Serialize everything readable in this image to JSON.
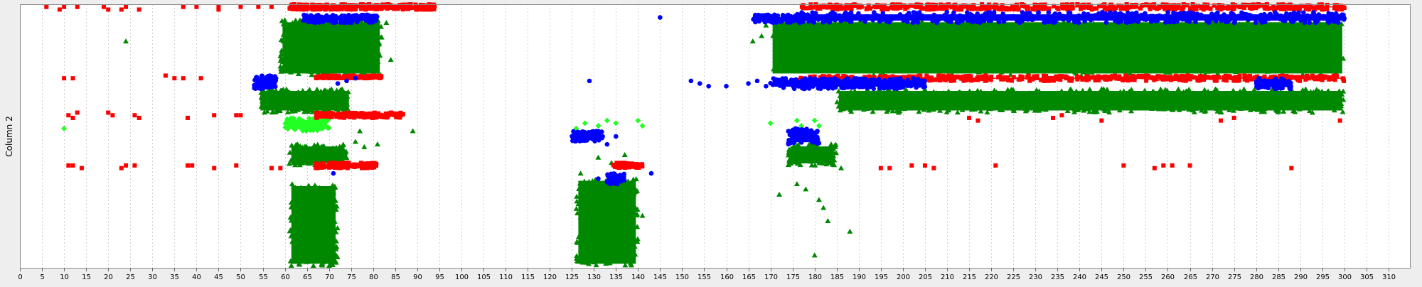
{
  "chart_data": {
    "type": "scatter",
    "title": "",
    "xlabel": "",
    "ylabel": "Column 2",
    "xlim": [
      0,
      315
    ],
    "x_ticks": [
      0,
      5,
      10,
      15,
      20,
      25,
      30,
      35,
      40,
      45,
      50,
      55,
      60,
      65,
      70,
      75,
      80,
      85,
      90,
      95,
      100,
      105,
      110,
      115,
      120,
      125,
      130,
      135,
      140,
      145,
      150,
      155,
      160,
      165,
      170,
      175,
      180,
      185,
      190,
      195,
      200,
      205,
      210,
      215,
      220,
      225,
      230,
      235,
      240,
      245,
      250,
      255,
      260,
      265,
      270,
      275,
      280,
      285,
      290,
      295,
      300,
      305,
      310
    ],
    "y_axis_tick_labels_shown": false,
    "grid": {
      "vertical": true,
      "horizontal": false,
      "style": "dotted"
    },
    "legend": "none",
    "colors": {
      "red": "#ff0000",
      "blue": "#0000ff",
      "green": "#008800",
      "lime": "#22ff22",
      "plot_background": "#ffffff",
      "page_background": "#eeeeee"
    },
    "y_scale_note": "y values are relative levels in [0,1] (0 = bottom of plot, 1 = top); the vertical axis shows no numeric tick labels",
    "series": [
      {
        "color": "red",
        "marker": "square",
        "points": [
          [
            6,
            0.99
          ],
          [
            9,
            0.98
          ],
          [
            10,
            0.99
          ],
          [
            13,
            0.99
          ],
          [
            19,
            0.99
          ],
          [
            20,
            0.98
          ],
          [
            23,
            0.98
          ],
          [
            24,
            0.99
          ],
          [
            27,
            0.98
          ],
          [
            37,
            0.99
          ],
          [
            40,
            0.99
          ],
          [
            45,
            0.98
          ],
          [
            45,
            0.99
          ],
          [
            50,
            0.99
          ],
          [
            54,
            0.99
          ],
          [
            57,
            0.99
          ],
          [
            10,
            0.72
          ],
          [
            12,
            0.72
          ],
          [
            33,
            0.73
          ],
          [
            35,
            0.72
          ],
          [
            37,
            0.72
          ],
          [
            41,
            0.72
          ],
          [
            11,
            0.58
          ],
          [
            12,
            0.57
          ],
          [
            13,
            0.59
          ],
          [
            20,
            0.59
          ],
          [
            21,
            0.58
          ],
          [
            26,
            0.58
          ],
          [
            27,
            0.57
          ],
          [
            38,
            0.57
          ],
          [
            44,
            0.58
          ],
          [
            49,
            0.58
          ],
          [
            50,
            0.58
          ],
          [
            11,
            0.39
          ],
          [
            12,
            0.39
          ],
          [
            14,
            0.38
          ],
          [
            23,
            0.38
          ],
          [
            24,
            0.39
          ],
          [
            26,
            0.39
          ],
          [
            38,
            0.39
          ],
          [
            39,
            0.39
          ],
          [
            44,
            0.38
          ],
          [
            49,
            0.39
          ],
          [
            57,
            0.38
          ],
          [
            59,
            0.38
          ],
          [
            195,
            0.38
          ],
          [
            197,
            0.38
          ],
          [
            202,
            0.39
          ],
          [
            205,
            0.39
          ],
          [
            207,
            0.38
          ],
          [
            221,
            0.39
          ],
          [
            250,
            0.39
          ],
          [
            257,
            0.38
          ],
          [
            259,
            0.39
          ],
          [
            261,
            0.39
          ],
          [
            265,
            0.39
          ],
          [
            288,
            0.38
          ],
          [
            215,
            0.57
          ],
          [
            217,
            0.56
          ],
          [
            234,
            0.57
          ],
          [
            236,
            0.58
          ],
          [
            245,
            0.56
          ],
          [
            272,
            0.56
          ],
          [
            275,
            0.57
          ],
          [
            299,
            0.56
          ]
        ],
        "bands": [
          {
            "x": [
              61,
              94
            ],
            "y": [
              0.98,
              1.0
            ]
          },
          {
            "x": [
              67,
              82
            ],
            "y": [
              0.72,
              0.73
            ]
          },
          {
            "x": [
              67,
              87
            ],
            "y": [
              0.57,
              0.59
            ]
          },
          {
            "x": [
              67,
              81
            ],
            "y": [
              0.38,
              0.4
            ]
          },
          {
            "x": [
              134,
              141
            ],
            "y": [
              0.38,
              0.4
            ]
          },
          {
            "x": [
              177,
              300
            ],
            "y": [
              0.98,
              1.0
            ]
          },
          {
            "x": [
              176,
              300
            ],
            "y": [
              0.71,
              0.73
            ]
          }
        ]
      },
      {
        "color": "blue",
        "marker": "circle",
        "points": [
          [
            145,
            0.95
          ],
          [
            129,
            0.71
          ],
          [
            152,
            0.71
          ],
          [
            154,
            0.7
          ],
          [
            156,
            0.69
          ],
          [
            160,
            0.69
          ],
          [
            165,
            0.7
          ],
          [
            167,
            0.71
          ],
          [
            169,
            0.69
          ],
          [
            171,
            0.7
          ],
          [
            72,
            0.7
          ],
          [
            74,
            0.71
          ],
          [
            76,
            0.72
          ],
          [
            130,
            0.49
          ],
          [
            132,
            0.5
          ],
          [
            135,
            0.5
          ],
          [
            133,
            0.47
          ],
          [
            143,
            0.36
          ],
          [
            131,
            0.34
          ],
          [
            133,
            0.33
          ],
          [
            71,
            0.36
          ],
          [
            54,
            0.71
          ],
          [
            55,
            0.69
          ],
          [
            57,
            0.7
          ],
          [
            58,
            0.72
          ]
        ],
        "bands": [
          {
            "x": [
              64,
              81
            ],
            "y": [
              0.93,
              0.96
            ]
          },
          {
            "x": [
              53,
              58
            ],
            "y": [
              0.68,
              0.73
            ]
          },
          {
            "x": [
              166,
              178
            ],
            "y": [
              0.93,
              0.96
            ]
          },
          {
            "x": [
              176,
              300
            ],
            "y": [
              0.93,
              0.97
            ]
          },
          {
            "x": [
              170,
              205
            ],
            "y": [
              0.68,
              0.72
            ]
          },
          {
            "x": [
              280,
              288
            ],
            "y": [
              0.68,
              0.72
            ]
          },
          {
            "x": [
              125,
              132
            ],
            "y": [
              0.48,
              0.52
            ]
          },
          {
            "x": [
              174,
              181
            ],
            "y": [
              0.47,
              0.53
            ]
          },
          {
            "x": [
              133,
              137
            ],
            "y": [
              0.32,
              0.36
            ]
          }
        ]
      },
      {
        "color": "green",
        "marker": "triangle",
        "points": [
          [
            24,
            0.86
          ],
          [
            60,
            0.94
          ],
          [
            83,
            0.93
          ],
          [
            84,
            0.79
          ],
          [
            80,
            0.89
          ],
          [
            55,
            0.66
          ],
          [
            57,
            0.64
          ],
          [
            77,
            0.52
          ],
          [
            89,
            0.52
          ],
          [
            76,
            0.48
          ],
          [
            78,
            0.46
          ],
          [
            81,
            0.47
          ],
          [
            62,
            0.4
          ],
          [
            64,
            0.42
          ],
          [
            137,
            0.43
          ],
          [
            131,
            0.42
          ],
          [
            134,
            0.4
          ],
          [
            127,
            0.36
          ],
          [
            138,
            0.24
          ],
          [
            141,
            0.2
          ],
          [
            128,
            0.1
          ],
          [
            132,
            0.08
          ],
          [
            139,
            0.12
          ],
          [
            169,
            0.92
          ],
          [
            168,
            0.88
          ],
          [
            166,
            0.86
          ],
          [
            179,
            0.47
          ],
          [
            182,
            0.42
          ],
          [
            184,
            0.4
          ],
          [
            186,
            0.38
          ],
          [
            188,
            0.14
          ],
          [
            183,
            0.18
          ],
          [
            182,
            0.23
          ],
          [
            180,
            0.05
          ],
          [
            172,
            0.28
          ],
          [
            178,
            0.3
          ],
          [
            181,
            0.26
          ],
          [
            176,
            0.32
          ]
        ],
        "bands": [
          {
            "x": [
              59,
              82
            ],
            "y": [
              0.73,
              0.94
            ]
          },
          {
            "x": [
              54,
              75
            ],
            "y": [
              0.59,
              0.68
            ]
          },
          {
            "x": [
              61,
              74
            ],
            "y": [
              0.39,
              0.47
            ]
          },
          {
            "x": [
              61,
              72
            ],
            "y": [
              0.01,
              0.32
            ]
          },
          {
            "x": [
              126,
              140
            ],
            "y": [
              0.01,
              0.34
            ]
          },
          {
            "x": [
              170,
              300
            ],
            "y": [
              0.73,
              0.94
            ]
          },
          {
            "x": [
              185,
              300
            ],
            "y": [
              0.59,
              0.68
            ]
          },
          {
            "x": [
              174,
              185
            ],
            "y": [
              0.39,
              0.47
            ]
          }
        ]
      },
      {
        "color": "lime",
        "marker": "diamond",
        "points": [
          [
            10,
            0.53
          ],
          [
            126,
            0.53
          ],
          [
            128,
            0.55
          ],
          [
            131,
            0.54
          ],
          [
            133,
            0.56
          ],
          [
            135,
            0.55
          ],
          [
            140,
            0.56
          ],
          [
            141,
            0.54
          ],
          [
            170,
            0.55
          ],
          [
            176,
            0.56
          ],
          [
            177,
            0.54
          ],
          [
            180,
            0.56
          ],
          [
            181,
            0.54
          ]
        ],
        "bands": [
          {
            "x": [
              60,
              70
            ],
            "y": [
              0.52,
              0.57
            ]
          }
        ]
      }
    ]
  }
}
